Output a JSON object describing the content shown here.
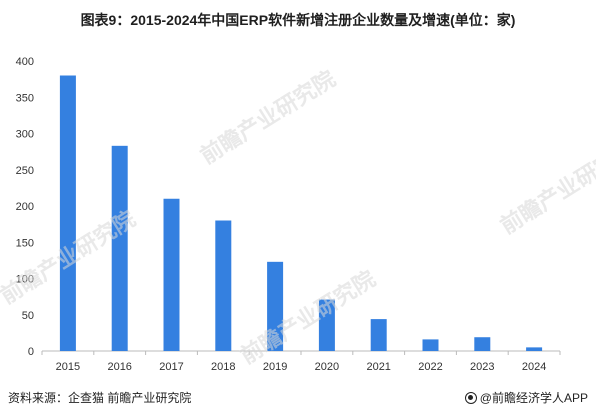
{
  "title": "图表9：2015-2024年中国ERP软件新增注册企业数量及增速(单位：家)",
  "source": "资料来源：企查猫 前瞻产业研究院",
  "brand": "@前瞻经济学人APP",
  "watermark": "前瞻产业研究院",
  "chart_data": {
    "type": "bar",
    "title": "图表9：2015-2024年中国ERP软件新增注册企业数量及增速(单位：家)",
    "categories": [
      "2015",
      "2016",
      "2017",
      "2018",
      "2019",
      "2020",
      "2021",
      "2022",
      "2023",
      "2024"
    ],
    "values": [
      380,
      283,
      210,
      180,
      123,
      71,
      44,
      16,
      19,
      5
    ],
    "ylim": [
      0,
      400
    ],
    "yticks": [
      0,
      50,
      100,
      150,
      200,
      250,
      300,
      350,
      400
    ],
    "bar_color": "#3480e0",
    "grid": false,
    "legend": "none"
  }
}
